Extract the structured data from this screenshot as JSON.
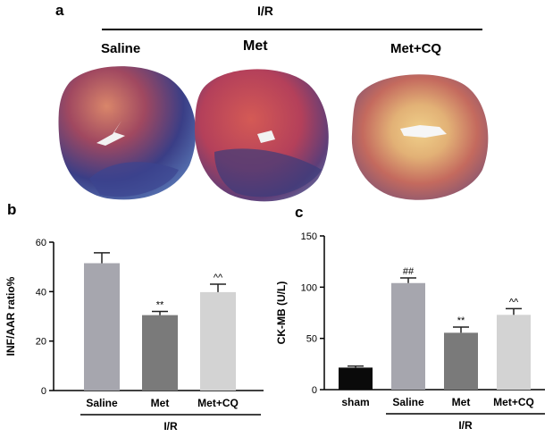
{
  "panel_a": {
    "letter": "a",
    "group_label": "I/R",
    "hearts": [
      {
        "label": "Saline"
      },
      {
        "label": "Met"
      },
      {
        "label": "Met+CQ"
      }
    ]
  },
  "chart_data": [
    {
      "panel_letter": "b",
      "type": "bar",
      "categories": [
        "Saline",
        "Met",
        "Met+CQ"
      ],
      "values": [
        51.5,
        30.5,
        39.8
      ],
      "errors": [
        4.2,
        1.5,
        3.2
      ],
      "bar_colors": [
        "#a6a6ae",
        "#7a7a7a",
        "#d3d3d3"
      ],
      "significance": [
        "",
        "**",
        "^^"
      ],
      "ylabel": "INF/AAR ratio%",
      "ylim": [
        0,
        60
      ],
      "yticks": [
        "0",
        "20",
        "40",
        "60"
      ],
      "group_label": "I/R",
      "grid": false
    },
    {
      "panel_letter": "c",
      "type": "bar",
      "categories": [
        "sham",
        "Saline",
        "Met",
        "Met+CQ"
      ],
      "values": [
        21.5,
        104,
        55.5,
        73
      ],
      "errors": [
        1.5,
        5,
        5.5,
        6
      ],
      "bar_colors": [
        "#0a0a0a",
        "#a6a6ae",
        "#7a7a7a",
        "#d3d3d3"
      ],
      "significance": [
        "",
        "##",
        "**",
        "^^"
      ],
      "ylabel": "CK-MB (U/L)",
      "ylim": [
        0,
        150
      ],
      "yticks": [
        "0",
        "50",
        "100",
        "150"
      ],
      "group_label": "I/R",
      "grid": false
    }
  ]
}
